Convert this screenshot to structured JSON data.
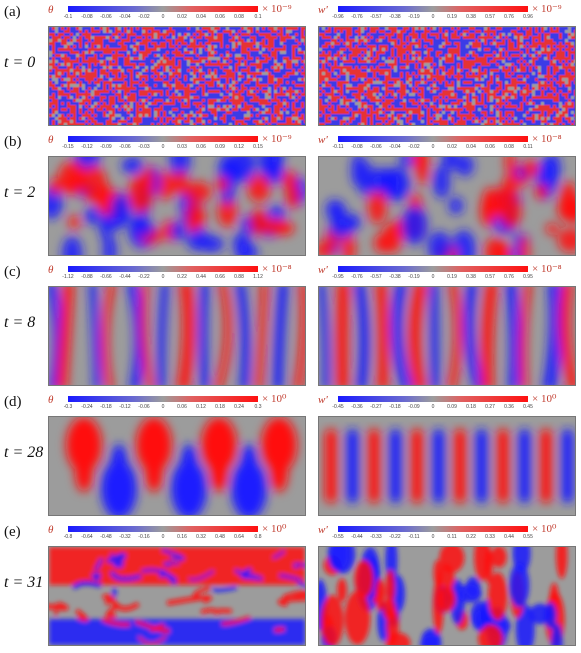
{
  "rows": [
    {
      "panel_label": "(a)",
      "time_label": "t = 0",
      "left": {
        "var": "θ",
        "scale": "× 10⁻⁹",
        "ticks": [
          "-0.1",
          "-0.08",
          "-0.06",
          "-0.04",
          "-0.02",
          "0",
          "0.02",
          "0.04",
          "0.06",
          "0.08",
          "0.1"
        ]
      },
      "right": {
        "var": "w'",
        "scale": "× 10⁻⁹",
        "ticks": [
          "-0.96",
          "-0.76",
          "-0.57",
          "-0.38",
          "-0.19",
          "0",
          "0.19",
          "0.38",
          "0.57",
          "0.76",
          "0.96"
        ]
      }
    },
    {
      "panel_label": "(b)",
      "time_label": "t = 2",
      "left": {
        "var": "θ",
        "scale": "× 10⁻⁹",
        "ticks": [
          "-0.15",
          "-0.12",
          "-0.09",
          "-0.06",
          "-0.03",
          "0",
          "0.03",
          "0.06",
          "0.09",
          "0.12",
          "0.15"
        ]
      },
      "right": {
        "var": "w'",
        "scale": "× 10⁻⁸",
        "ticks": [
          "-0.11",
          "-0.08",
          "-0.06",
          "-0.04",
          "-0.02",
          "0",
          "0.02",
          "0.04",
          "0.06",
          "0.08",
          "0.11"
        ]
      }
    },
    {
      "panel_label": "(c)",
      "time_label": "t = 8",
      "left": {
        "var": "θ",
        "scale": "× 10⁻⁸",
        "ticks": [
          "-1.12",
          "-0.88",
          "-0.66",
          "-0.44",
          "-0.22",
          "0",
          "0.22",
          "0.44",
          "0.66",
          "0.88",
          "1.12"
        ]
      },
      "right": {
        "var": "w'",
        "scale": "× 10⁻⁸",
        "ticks": [
          "-0.95",
          "-0.76",
          "-0.57",
          "-0.38",
          "-0.19",
          "0",
          "0.19",
          "0.38",
          "0.57",
          "0.76",
          "0.95"
        ]
      }
    },
    {
      "panel_label": "(d)",
      "time_label": "t = 28",
      "left": {
        "var": "θ",
        "scale": "× 10⁰",
        "ticks": [
          "-0.3",
          "-0.24",
          "-0.18",
          "-0.12",
          "-0.06",
          "0",
          "0.06",
          "0.12",
          "0.18",
          "0.24",
          "0.3"
        ]
      },
      "right": {
        "var": "w'",
        "scale": "× 10⁰",
        "ticks": [
          "-0.45",
          "-0.36",
          "-0.27",
          "-0.18",
          "-0.09",
          "0",
          "0.09",
          "0.18",
          "0.27",
          "0.36",
          "0.45"
        ]
      }
    },
    {
      "panel_label": "(e)",
      "time_label": "t = 31",
      "left": {
        "var": "θ",
        "scale": "× 10⁰",
        "ticks": [
          "-0.8",
          "-0.64",
          "-0.48",
          "-0.32",
          "-0.16",
          "0",
          "0.16",
          "0.32",
          "0.48",
          "0.64",
          "0.8"
        ]
      },
      "right": {
        "var": "w'",
        "scale": "× 10⁰",
        "ticks": [
          "-0.55",
          "-0.44",
          "-0.33",
          "-0.22",
          "-0.11",
          "0",
          "0.11",
          "0.22",
          "0.33",
          "0.44",
          "0.55"
        ]
      }
    }
  ],
  "colors": {
    "neg": "#1a1aff",
    "mid": "#9c9c9c",
    "pos": "#ff1010",
    "label": "#c0392b"
  }
}
